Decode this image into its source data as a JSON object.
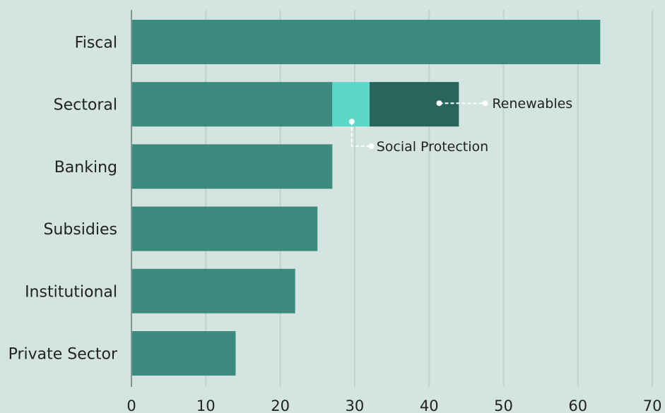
{
  "chart_data": {
    "type": "bar",
    "orientation": "horizontal",
    "stacked": true,
    "categories": [
      "Fiscal",
      "Sectoral",
      "Banking",
      "Subsidies",
      "Institutional",
      "Private Sector"
    ],
    "series": [
      {
        "values": [
          63,
          27,
          27,
          25,
          22,
          14
        ],
        "color": "#3d8b7f"
      },
      {
        "name": "Social Protection",
        "values": [
          0,
          5,
          0,
          0,
          0,
          0
        ],
        "color": "#5cd6c6"
      },
      {
        "name": "Renewables",
        "values": [
          0,
          12,
          0,
          0,
          0,
          0
        ],
        "color": "#2a655c"
      }
    ],
    "xlim": [
      0,
      70
    ],
    "xticks": [
      0,
      10,
      20,
      30,
      40,
      50,
      60,
      70
    ],
    "xtick_labels": [
      "0",
      "10",
      "20",
      "30",
      "40",
      "50",
      "60",
      "70"
    ],
    "annotations": [
      {
        "text": "Renewables",
        "category": "Sectoral",
        "series": "Renewables"
      },
      {
        "text": "Social Protection",
        "category": "Sectoral",
        "series": "Social Protection"
      }
    ],
    "grid": "vertical",
    "title": "",
    "xlabel": "",
    "ylabel": ""
  },
  "colors": {
    "background": "#d3e4e1",
    "grid": "#bfd3cf",
    "axis": "#7f9793",
    "annotation_line": "#ffffff"
  }
}
